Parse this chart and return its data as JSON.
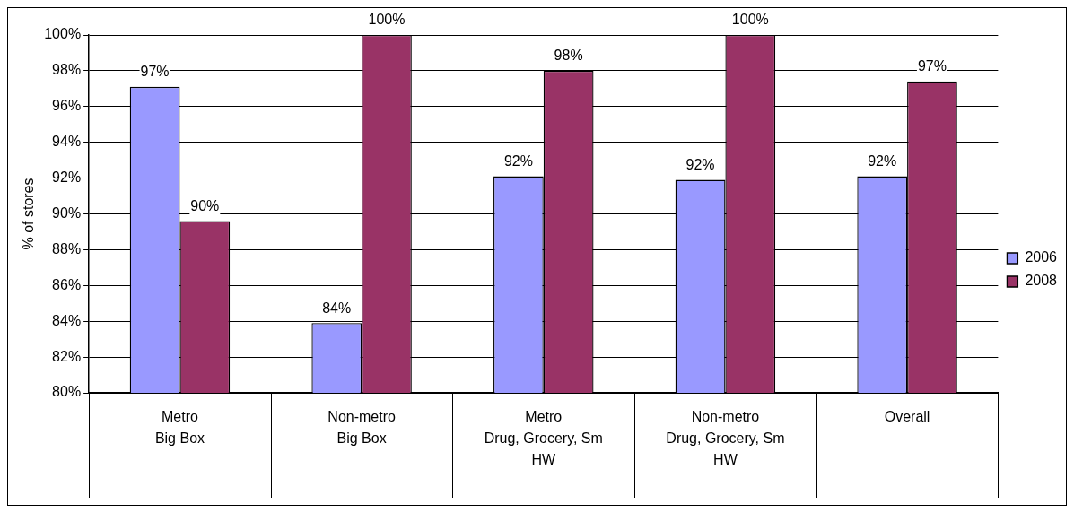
{
  "chart_data": {
    "type": "bar",
    "ylabel": "% of stores",
    "categories": [
      "Metro\nBig Box",
      "Non-metro\nBig Box",
      "Metro\nDrug, Grocery, Sm HW",
      "Non-metro\nDrug, Grocery, Sm HW",
      "Overall"
    ],
    "series": [
      {
        "name": "2006",
        "color": "#9999ff",
        "values": [
          97.1,
          83.9,
          92.1,
          91.9,
          92.1
        ],
        "value_labels": [
          "97%",
          "84%",
          "92%",
          "92%",
          "92%"
        ]
      },
      {
        "name": "2008",
        "color": "#993366",
        "values": [
          89.6,
          100,
          98,
          100,
          97.4
        ],
        "value_labels": [
          "90%",
          "100%",
          "98%",
          "100%",
          "97%"
        ]
      }
    ],
    "ylim": [
      80,
      100
    ],
    "yticks": [
      {
        "value": 80,
        "label": "80%"
      },
      {
        "value": 82,
        "label": "82%"
      },
      {
        "value": 84,
        "label": "84%"
      },
      {
        "value": 86,
        "label": "86%"
      },
      {
        "value": 88,
        "label": "88%"
      },
      {
        "value": 90,
        "label": "90%"
      },
      {
        "value": 92,
        "label": "92%"
      },
      {
        "value": 94,
        "label": "94%"
      },
      {
        "value": 96,
        "label": "96%"
      },
      {
        "value": 98,
        "label": "98%"
      },
      {
        "value": 100,
        "label": "100%"
      }
    ],
    "grid": "y",
    "legend": "right"
  }
}
